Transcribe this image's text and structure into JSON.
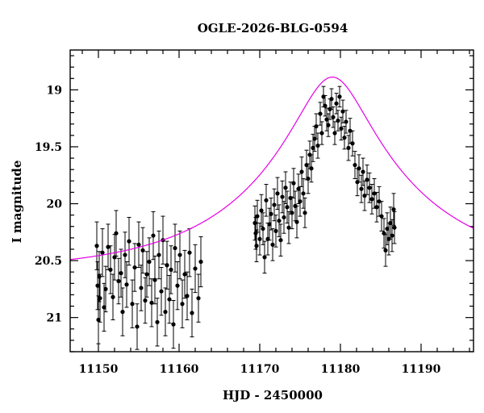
{
  "chart_data": {
    "type": "scatter",
    "title": "OGLE-2026-BLG-0594",
    "xlabel": "HJD - 2450000",
    "ylabel": "I magnitude",
    "xlim": [
      11146.5,
      11196.5
    ],
    "ylim": [
      21.3,
      18.65
    ],
    "y_inverted": true,
    "grid": false,
    "x_ticks": [
      11150,
      11160,
      11170,
      11180,
      11190
    ],
    "y_ticks": [
      19,
      19.5,
      20,
      20.5,
      21
    ],
    "y_tick_labels": [
      "19",
      "19.5",
      "20",
      "20.5",
      "21"
    ],
    "model_color": "#e600e6",
    "point_color": "#000000",
    "model": {
      "name": "",
      "t0": 11179.0,
      "tE": 20.0,
      "u0": 0.21,
      "baseline_mag": 20.6,
      "blend_fraction": 1.0
    },
    "series": [
      {
        "name": "",
        "points": [
          [
            11149.8,
            20.37,
            0.21
          ],
          [
            11149.9,
            20.72,
            0.21
          ],
          [
            11150.0,
            21.02,
            0.21
          ],
          [
            11150.1,
            20.64,
            0.22
          ],
          [
            11150.2,
            20.83,
            0.21
          ],
          [
            11150.5,
            20.43,
            0.21
          ],
          [
            11150.7,
            20.91,
            0.21
          ],
          [
            11150.9,
            20.75,
            0.2
          ],
          [
            11151.2,
            20.38,
            0.2
          ],
          [
            11151.5,
            20.58,
            0.21
          ],
          [
            11151.8,
            20.82,
            0.2
          ],
          [
            11152.0,
            20.47,
            0.2
          ],
          [
            11152.2,
            20.26,
            0.2
          ],
          [
            11152.5,
            20.68,
            0.2
          ],
          [
            11152.8,
            20.61,
            0.21
          ],
          [
            11153.0,
            20.95,
            0.21
          ],
          [
            11153.3,
            20.45,
            0.2
          ],
          [
            11153.5,
            20.71,
            0.2
          ],
          [
            11153.8,
            20.33,
            0.21
          ],
          [
            11154.2,
            20.88,
            0.21
          ],
          [
            11154.5,
            20.56,
            0.21
          ],
          [
            11154.8,
            21.08,
            0.2
          ],
          [
            11155.0,
            20.36,
            0.2
          ],
          [
            11155.3,
            20.74,
            0.2
          ],
          [
            11155.5,
            20.41,
            0.2
          ],
          [
            11155.8,
            20.85,
            0.2
          ],
          [
            11156.0,
            20.62,
            0.2
          ],
          [
            11156.3,
            20.51,
            0.21
          ],
          [
            11156.6,
            20.87,
            0.21
          ],
          [
            11156.8,
            20.28,
            0.21
          ],
          [
            11157.0,
            20.67,
            0.21
          ],
          [
            11157.3,
            21.04,
            0.21
          ],
          [
            11157.5,
            20.45,
            0.21
          ],
          [
            11157.8,
            20.77,
            0.21
          ],
          [
            11158.0,
            20.32,
            0.21
          ],
          [
            11158.3,
            20.95,
            0.21
          ],
          [
            11158.5,
            20.54,
            0.21
          ],
          [
            11158.8,
            20.84,
            0.21
          ],
          [
            11159.0,
            20.58,
            0.21
          ],
          [
            11159.3,
            21.06,
            0.21
          ],
          [
            11159.5,
            20.39,
            0.21
          ],
          [
            11159.8,
            20.72,
            0.21
          ],
          [
            11160.1,
            20.45,
            0.21
          ],
          [
            11160.4,
            20.88,
            0.21
          ],
          [
            11160.7,
            20.62,
            0.21
          ],
          [
            11161.0,
            20.81,
            0.21
          ],
          [
            11161.3,
            20.43,
            0.21
          ],
          [
            11161.6,
            20.96,
            0.21
          ],
          [
            11162.0,
            20.57,
            0.21
          ],
          [
            11162.4,
            20.83,
            0.21
          ],
          [
            11162.7,
            20.51,
            0.22
          ],
          [
            11169.4,
            20.17,
            0.15
          ],
          [
            11169.5,
            20.26,
            0.14
          ],
          [
            11169.6,
            20.37,
            0.14
          ],
          [
            11169.7,
            20.11,
            0.14
          ],
          [
            11170.0,
            20.31,
            0.14
          ],
          [
            11170.2,
            20.06,
            0.14
          ],
          [
            11170.4,
            20.22,
            0.14
          ],
          [
            11170.6,
            20.47,
            0.14
          ],
          [
            11170.8,
            19.97,
            0.14
          ],
          [
            11171.0,
            20.31,
            0.14
          ],
          [
            11171.2,
            20.18,
            0.14
          ],
          [
            11171.4,
            20.09,
            0.14
          ],
          [
            11171.6,
            20.36,
            0.14
          ],
          [
            11171.8,
            20.01,
            0.14
          ],
          [
            11172.0,
            20.24,
            0.14
          ],
          [
            11172.2,
            19.91,
            0.14
          ],
          [
            11172.4,
            20.15,
            0.14
          ],
          [
            11172.6,
            20.32,
            0.14
          ],
          [
            11172.8,
            19.94,
            0.14
          ],
          [
            11173.0,
            20.12,
            0.14
          ],
          [
            11173.2,
            19.86,
            0.14
          ],
          [
            11173.4,
            20.03,
            0.14
          ],
          [
            11173.6,
            20.21,
            0.14
          ],
          [
            11173.8,
            19.95,
            0.14
          ],
          [
            11174.0,
            20.08,
            0.14
          ],
          [
            11174.2,
            19.82,
            0.13
          ],
          [
            11174.4,
            20.02,
            0.13
          ],
          [
            11174.6,
            20.16,
            0.14
          ],
          [
            11174.8,
            19.87,
            0.13
          ],
          [
            11175.0,
            19.98,
            0.13
          ],
          [
            11175.2,
            19.72,
            0.13
          ],
          [
            11175.4,
            19.91,
            0.13
          ],
          [
            11175.6,
            20.08,
            0.13
          ],
          [
            11175.8,
            19.66,
            0.13
          ],
          [
            11176.0,
            19.78,
            0.13
          ],
          [
            11176.2,
            19.57,
            0.12
          ],
          [
            11176.4,
            19.69,
            0.12
          ],
          [
            11176.6,
            19.51,
            0.12
          ],
          [
            11176.8,
            19.43,
            0.11
          ],
          [
            11177.0,
            19.32,
            0.11
          ],
          [
            11177.2,
            19.49,
            0.11
          ],
          [
            11177.5,
            19.21,
            0.1
          ],
          [
            11177.7,
            19.38,
            0.1
          ],
          [
            11177.9,
            19.06,
            0.09
          ],
          [
            11178.1,
            19.14,
            0.09
          ],
          [
            11178.3,
            19.26,
            0.1
          ],
          [
            11178.5,
            19.31,
            0.1
          ],
          [
            11178.7,
            19.17,
            0.09
          ],
          [
            11178.9,
            19.08,
            0.09
          ],
          [
            11179.1,
            19.24,
            0.09
          ],
          [
            11179.3,
            19.38,
            0.1
          ],
          [
            11179.5,
            19.12,
            0.09
          ],
          [
            11179.7,
            19.27,
            0.09
          ],
          [
            11179.9,
            19.06,
            0.09
          ],
          [
            11180.1,
            19.34,
            0.1
          ],
          [
            11180.3,
            19.19,
            0.1
          ],
          [
            11180.5,
            19.42,
            0.1
          ],
          [
            11180.7,
            19.28,
            0.1
          ],
          [
            11181.0,
            19.51,
            0.11
          ],
          [
            11181.2,
            19.36,
            0.11
          ],
          [
            11181.5,
            19.47,
            0.11
          ],
          [
            11181.8,
            19.66,
            0.12
          ],
          [
            11182.1,
            19.81,
            0.12
          ],
          [
            11182.3,
            19.69,
            0.12
          ],
          [
            11182.6,
            19.87,
            0.12
          ],
          [
            11182.8,
            19.72,
            0.12
          ],
          [
            11183.0,
            19.93,
            0.13
          ],
          [
            11183.3,
            19.79,
            0.13
          ],
          [
            11183.6,
            19.86,
            0.13
          ],
          [
            11183.9,
            19.96,
            0.13
          ],
          [
            11184.2,
            19.91,
            0.13
          ],
          [
            11184.5,
            20.03,
            0.13
          ],
          [
            11184.8,
            19.98,
            0.13
          ],
          [
            11185.1,
            20.11,
            0.13
          ],
          [
            11185.4,
            20.26,
            0.13
          ],
          [
            11185.6,
            20.41,
            0.14
          ],
          [
            11185.8,
            20.22,
            0.14
          ],
          [
            11186.0,
            20.31,
            0.14
          ],
          [
            11186.2,
            20.17,
            0.14
          ],
          [
            11186.4,
            20.28,
            0.14
          ],
          [
            11186.6,
            20.05,
            0.14
          ],
          [
            11186.7,
            20.21,
            0.14
          ]
        ]
      }
    ]
  }
}
